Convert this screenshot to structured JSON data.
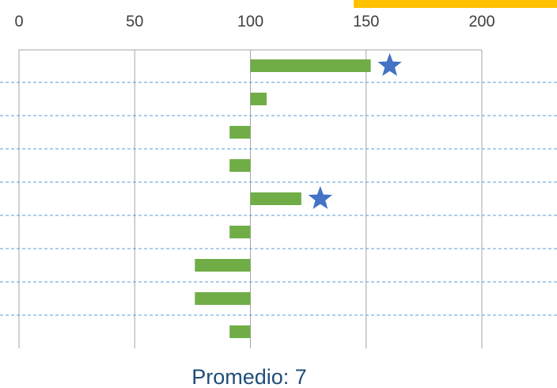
{
  "chart_data": {
    "type": "bar",
    "orientation": "horizontal",
    "values": [
      152,
      107,
      91,
      91,
      122,
      91,
      76,
      76,
      91
    ],
    "base": 100,
    "color": "#70ad47",
    "stars": [
      0,
      4
    ],
    "star_color": "#4472c4",
    "xlim": [
      0,
      200
    ],
    "xticks": [
      0,
      50,
      100,
      150,
      200
    ],
    "grid": true,
    "annotation": "Promedio: 7"
  }
}
